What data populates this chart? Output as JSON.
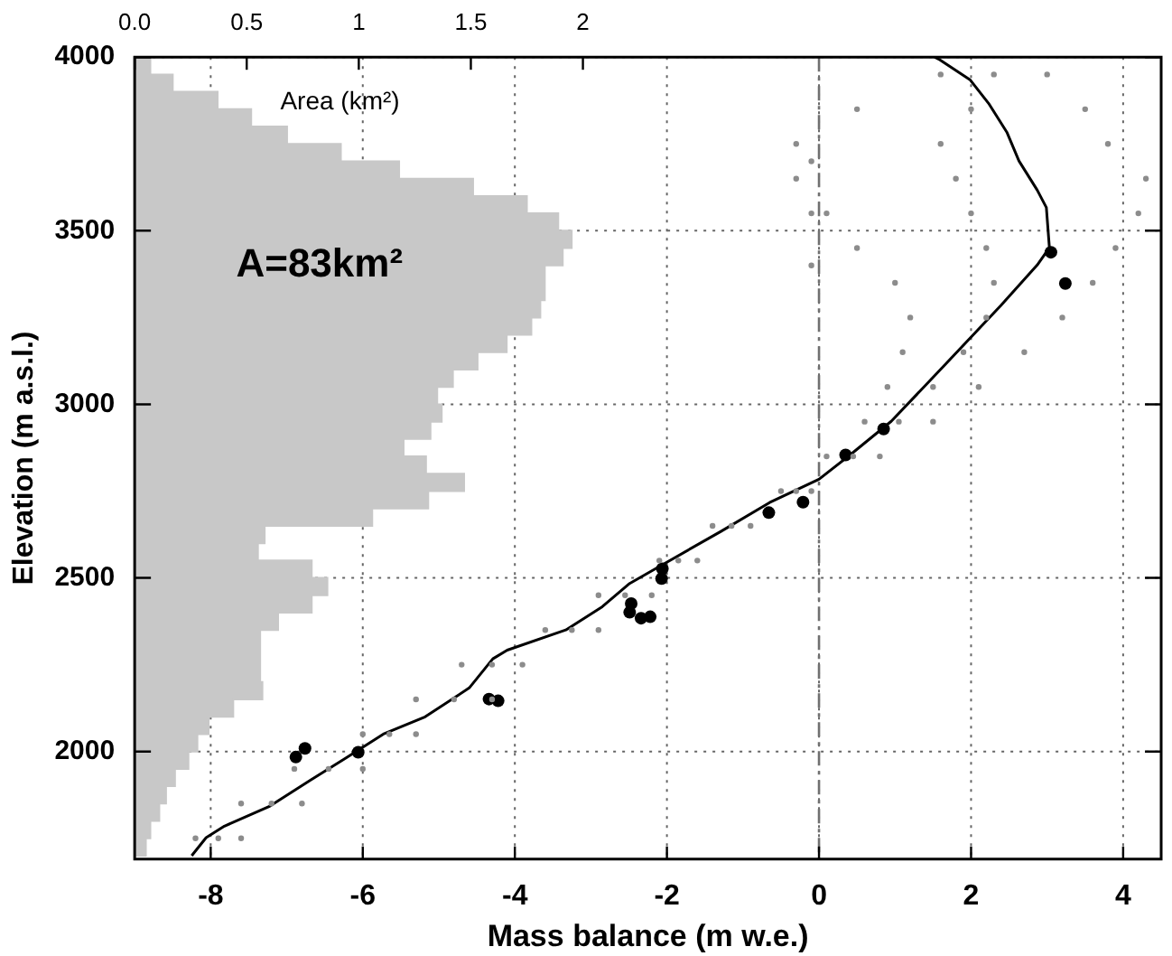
{
  "chart_data": {
    "type": "scatter",
    "xlabel": "Mass balance (m w.e.)",
    "ylabel": "Elevation (m a.s.l.)",
    "x2label": "Area (km²)",
    "xlim": [
      -9,
      4.5
    ],
    "xticks": [
      -8,
      -6,
      -4,
      -2,
      0,
      2,
      4
    ],
    "x2lim": [
      0,
      4.58
    ],
    "x2ticks": [
      {
        "value": 0,
        "label": "0.0"
      },
      0.5,
      1,
      1.5,
      2
    ],
    "ylim": [
      1690,
      4000
    ],
    "yticks": [
      2000,
      2500,
      3000,
      3500,
      4000
    ],
    "grid": true,
    "ref_lines": [
      {
        "axis": "x",
        "value": 0,
        "color": "#707070",
        "line_style": "dashed"
      }
    ],
    "annotations": [
      "A=83km²"
    ],
    "series": [
      {
        "type": "area",
        "axis": "x2",
        "color": "#c8c8c8",
        "x": [
          0,
          0.05,
          0.05,
          0.07,
          0.07,
          0.11,
          0.11,
          0.14,
          0.14,
          0.18,
          0.18,
          0.24,
          0.24,
          0.28,
          0.28,
          0.33,
          0.33,
          0.44,
          0.44,
          0.57,
          0.57,
          0.56,
          0.56,
          0.56,
          0.56,
          0.56,
          0.56,
          0.64,
          0.64,
          0.79,
          0.79,
          0.86,
          0.86,
          0.79,
          0.79,
          0.55,
          0.55,
          0.58,
          0.58,
          1.06,
          1.06,
          1.31,
          1.31,
          1.47,
          1.47,
          1.3,
          1.3,
          1.2,
          1.2,
          1.32,
          1.32,
          1.37,
          1.37,
          1.35,
          1.35,
          1.42,
          1.42,
          1.53,
          1.53,
          1.66,
          1.66,
          1.77,
          1.77,
          1.81,
          1.81,
          1.83,
          1.83,
          1.83,
          1.83,
          1.91,
          1.91,
          1.95,
          1.95,
          1.89,
          1.89,
          1.75,
          1.75,
          1.51,
          1.51,
          1.18,
          1.18,
          0.92,
          0.92,
          0.68,
          0.68,
          0.52,
          0.52,
          0.37,
          0.37,
          0.17,
          0.17,
          0.07,
          0.07,
          0
        ],
        "values": [
          1700,
          1700,
          1750,
          1750,
          1800,
          1800,
          1850,
          1850,
          1900,
          1900,
          1950,
          1950,
          2000,
          2000,
          2050,
          2050,
          2100,
          2100,
          2150,
          2150,
          2200,
          2200,
          2250,
          2250,
          2300,
          2300,
          2350,
          2350,
          2400,
          2400,
          2450,
          2450,
          2500,
          2500,
          2550,
          2550,
          2600,
          2600,
          2650,
          2650,
          2700,
          2700,
          2750,
          2750,
          2800,
          2800,
          2850,
          2850,
          2900,
          2900,
          2950,
          2950,
          3000,
          3000,
          3050,
          3050,
          3100,
          3100,
          3150,
          3150,
          3200,
          3200,
          3250,
          3250,
          3300,
          3300,
          3350,
          3350,
          3400,
          3400,
          3450,
          3450,
          3500,
          3500,
          3550,
          3550,
          3600,
          3600,
          3650,
          3650,
          3700,
          3700,
          3750,
          3750,
          3800,
          3800,
          3850,
          3850,
          3900,
          3900,
          3950,
          3950,
          4000,
          4000
        ]
      },
      {
        "type": "scatter",
        "color": "#8c8c8c",
        "marker": "circle",
        "x": [
          -8.2,
          -7.9,
          -7.6,
          -7.6,
          -7.2,
          -6.8,
          -6.9,
          -6.45,
          -6.0,
          -6.0,
          -5.65,
          -5.3,
          -5.3,
          -4.8,
          -4.3,
          -4.7,
          -4.3,
          -3.9,
          -3.6,
          -3.25,
          -2.9,
          -2.9,
          -2.55,
          -2.2,
          -2.1,
          -1.85,
          -1.6,
          -1.4,
          -1.15,
          -0.9,
          -0.5,
          -0.3,
          -0.1,
          0.1,
          0.45,
          0.8,
          0.6,
          1.05,
          1.5,
          0.9,
          1.5,
          2.1,
          1.1,
          1.9,
          2.7,
          1.2,
          2.2,
          3.2,
          1.0,
          2.3,
          3.6,
          0.5,
          2.2,
          3.9,
          0.1,
          2.0,
          4.2,
          -0.3,
          1.8,
          4.3,
          -0.3,
          1.6,
          3.8,
          0.5,
          2.0,
          3.5,
          1.6,
          2.3,
          3.0,
          -0.1,
          -0.1,
          -0.1
        ],
        "values": [
          1750,
          1750,
          1750,
          1850,
          1850,
          1850,
          1950,
          1950,
          1950,
          2050,
          2050,
          2050,
          2150,
          2150,
          2150,
          2250,
          2250,
          2250,
          2350,
          2350,
          2350,
          2450,
          2450,
          2450,
          2550,
          2550,
          2550,
          2650,
          2650,
          2650,
          2750,
          2750,
          2750,
          2850,
          2850,
          2850,
          2950,
          2950,
          2950,
          3050,
          3050,
          3050,
          3150,
          3150,
          3150,
          3250,
          3250,
          3250,
          3350,
          3350,
          3350,
          3450,
          3450,
          3450,
          3550,
          3550,
          3550,
          3650,
          3650,
          3650,
          3750,
          3750,
          3750,
          3850,
          3850,
          3850,
          3950,
          3950,
          3950,
          3400,
          3550,
          3700
        ]
      },
      {
        "type": "line",
        "color": "#000000",
        "x": [
          -8.25,
          -8.06,
          -7.82,
          -7.22,
          -6.69,
          -6.21,
          -5.73,
          -5.18,
          -4.6,
          -4.29,
          -4.1,
          -3.33,
          -2.85,
          -2.49,
          -2.09,
          -1.29,
          -0.65,
          0,
          0.39,
          0.95,
          1.67,
          2.39,
          2.87,
          3.03,
          2.99,
          2.87,
          2.63,
          2.47,
          2.23,
          1.99,
          1.59,
          1.52
        ],
        "values": [
          1700,
          1752,
          1785,
          1843,
          1917,
          1983,
          2050,
          2100,
          2183,
          2267,
          2292,
          2350,
          2417,
          2484,
          2534,
          2634,
          2717,
          2784,
          2851,
          2951,
          3117,
          3284,
          3401,
          3451,
          3567,
          3617,
          3701,
          3784,
          3867,
          3934,
          3992,
          4000
        ]
      },
      {
        "type": "scatter",
        "color": "#000000",
        "marker": "circle",
        "x": [
          -6.88,
          -6.76,
          -6.06,
          -4.34,
          -4.22,
          -2.47,
          -2.49,
          -2.34,
          -2.22,
          -2.06,
          -2.07,
          -0.66,
          -0.21,
          0.35,
          0.85,
          3.05,
          3.24
        ],
        "values": [
          1984,
          2009,
          1998,
          2151,
          2146,
          2426,
          2401,
          2384,
          2388,
          2526,
          2498,
          2688,
          2718,
          2854,
          2929,
          3438,
          3348
        ]
      }
    ]
  }
}
